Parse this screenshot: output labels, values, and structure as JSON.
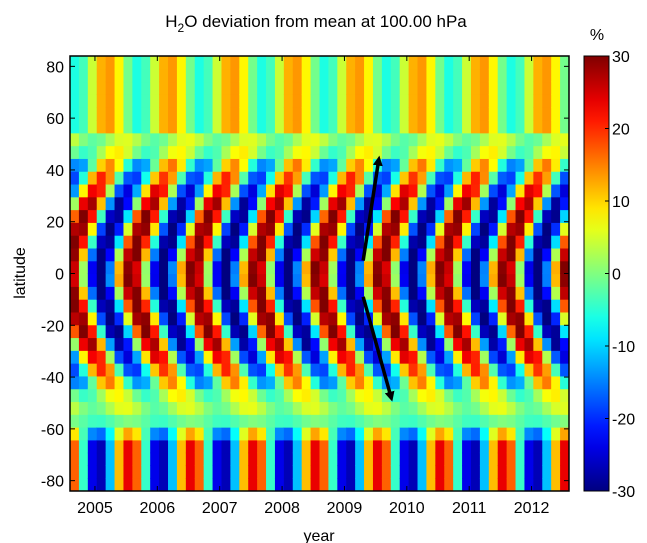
{
  "chart_data": {
    "type": "heatmap",
    "title_main": "H",
    "title_sub": "2",
    "title_rest": "O deviation from mean at 100.00 hPa",
    "xlabel": "year",
    "ylabel": "latitude",
    "xlim": [
      2004.6,
      2012.6
    ],
    "ylim": [
      -84,
      84
    ],
    "x_ticks": [
      2005,
      2006,
      2007,
      2008,
      2009,
      2010,
      2011,
      2012
    ],
    "x_tick_labels": [
      "2005",
      "2006",
      "2007",
      "2008",
      "2009",
      "2010",
      "2011",
      "2012"
    ],
    "y_ticks": [
      -80,
      -60,
      -40,
      -20,
      0,
      20,
      40,
      60,
      80
    ],
    "y_tick_labels": [
      "-80",
      "-60",
      "-40",
      "-20",
      "0",
      "20",
      "40",
      "60",
      "80"
    ],
    "colorbar": {
      "label": "%",
      "range": [
        -30,
        30
      ],
      "ticks": [
        -30,
        -20,
        -10,
        0,
        10,
        20,
        30
      ],
      "tick_labels": [
        "-30",
        "-20",
        "-10",
        "0",
        "10",
        "20",
        "30"
      ],
      "colormap": "jet",
      "colors": [
        "#00008f",
        "#0000ff",
        "#00ffff",
        "#ffff00",
        "#ff0000",
        "#800000"
      ]
    },
    "annotations": [
      {
        "type": "arrow",
        "from": [
          2009.3,
          5
        ],
        "to": [
          2009.55,
          44
        ]
      },
      {
        "type": "arrow",
        "from": [
          2009.3,
          -9
        ],
        "to": [
          2009.75,
          -48
        ]
      }
    ],
    "grid": false,
    "legend": "colorbar-right"
  }
}
